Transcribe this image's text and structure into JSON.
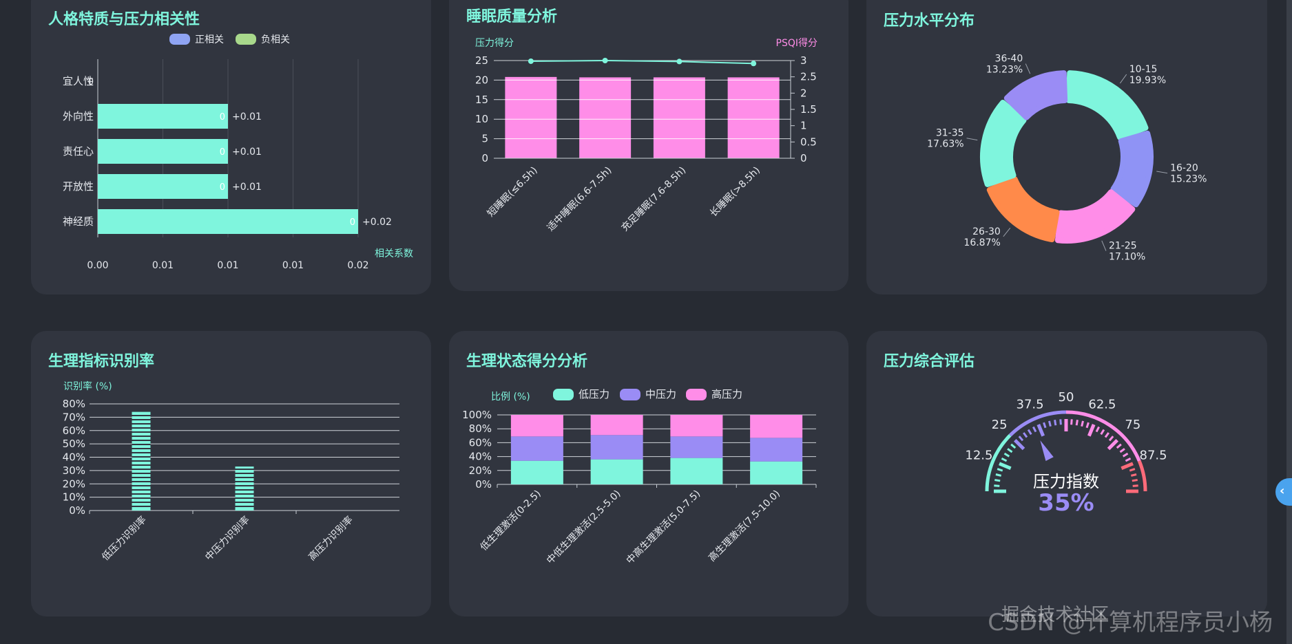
{
  "cards": {
    "personality": {
      "title": "人格特质与压力相关性"
    },
    "sleep": {
      "title": "睡眠质量分析"
    },
    "stress_dist": {
      "title": "压力水平分布"
    },
    "physio_rate": {
      "title": "生理指标识别率"
    },
    "physio_score": {
      "title": "生理状态得分分析"
    },
    "gauge": {
      "title": "压力综合评估"
    }
  },
  "watermark": "CSDN @计算机程序员小杨",
  "watermark_overlay": "掘金技术社区",
  "edge_tab_icon": "‹",
  "chart_data": [
    {
      "id": "personality",
      "type": "bar",
      "orientation": "horizontal",
      "legend": [
        "正相关",
        "负相关"
      ],
      "legend_position": "top",
      "categories": [
        "宜人性",
        "外向性",
        "责任心",
        "开放性",
        "神经质"
      ],
      "values": [
        0,
        0.01,
        0.01,
        0.01,
        0.02
      ],
      "inner_labels": [
        "0",
        "0",
        "0",
        "0",
        "0"
      ],
      "value_labels": [
        "",
        "+0.01",
        "+0.01",
        "+0.01",
        "+0.02"
      ],
      "xlabel": "相关系数",
      "xticks": [
        "0.00",
        "0.01",
        "0.01",
        "0.01",
        "0.02"
      ],
      "xlim": [
        0,
        0.02
      ],
      "grid": true,
      "colors": {
        "positive": "#7ff5dd",
        "negative": "#a8d88b",
        "legend_positive": "#8fa4f3"
      }
    },
    {
      "id": "sleep",
      "type": "bar",
      "categories": [
        "短睡眠(≤6.5h)",
        "适中睡眠(6.6-7.5h)",
        "充足睡眠(7.6-8.5h)",
        "长睡眠(>8.5h)"
      ],
      "series": [
        {
          "type": "bar",
          "axis": "left",
          "values": [
            20.8,
            20.7,
            20.7,
            20.7
          ]
        },
        {
          "type": "line",
          "axis": "right",
          "values": [
            2.98,
            3.0,
            2.97,
            2.91
          ]
        }
      ],
      "ylabel": "压力得分",
      "ylabel_right": "PSQI得分",
      "ylim": [
        0,
        25
      ],
      "ylim_right": [
        0,
        3
      ],
      "yticks": [
        "0",
        "5",
        "10",
        "15",
        "20",
        "25"
      ],
      "yticks_right": [
        "0",
        "0.5",
        "1",
        "1.5",
        "2",
        "2.5",
        "3"
      ],
      "grid": true,
      "colors": {
        "bar": "#ff8de8",
        "line": "#7ff5dd"
      }
    },
    {
      "id": "stress_dist",
      "type": "pie",
      "donut": true,
      "slices": [
        {
          "label": "10-15",
          "value": 19.93,
          "pct": "19.93%",
          "color": "#7ff5dd"
        },
        {
          "label": "16-20",
          "value": 15.23,
          "pct": "15.23%",
          "color": "#8f93f5"
        },
        {
          "label": "21-25",
          "value": 17.1,
          "pct": "17.10%",
          "color": "#ff8de8"
        },
        {
          "label": "26-30",
          "value": 16.87,
          "pct": "16.87%",
          "color": "#ff8a4a"
        },
        {
          "label": "31-35",
          "value": 17.63,
          "pct": "17.63%",
          "color": "#7ff5dd"
        },
        {
          "label": "36-40",
          "value": 13.23,
          "pct": "13.23%",
          "color": "#9a8cf5"
        }
      ]
    },
    {
      "id": "physio_rate",
      "type": "bar",
      "categories": [
        "低压力识别率",
        "中压力识别率",
        "高压力识别率"
      ],
      "values": [
        74,
        33,
        0
      ],
      "ylabel": "识别率 (%)",
      "ylim": [
        0,
        80
      ],
      "yticks": [
        "0%",
        "10%",
        "20%",
        "30%",
        "40%",
        "50%",
        "60%",
        "70%",
        "80%"
      ],
      "grid": true,
      "colors": {
        "bar": "#7ff5dd"
      }
    },
    {
      "id": "physio_score",
      "type": "bar",
      "stacked": true,
      "categories": [
        "低生理激活(0-2.5)",
        "中低生理激活(2.5-5.0)",
        "中高生理激活(5.0-7.5)",
        "高生理激活(7.5-10.0)"
      ],
      "series": [
        {
          "name": "低压力",
          "values": [
            34,
            36,
            38,
            33
          ],
          "color": "#7ff5dd"
        },
        {
          "name": "中压力",
          "values": [
            35,
            35,
            31,
            34
          ],
          "color": "#9a8cf5"
        },
        {
          "name": "高压力",
          "values": [
            31,
            29,
            31,
            33
          ],
          "color": "#ff8de8"
        }
      ],
      "ylabel": "比例 (%)",
      "ylim": [
        0,
        100
      ],
      "yticks": [
        "0%",
        "20%",
        "40%",
        "60%",
        "80%",
        "100%"
      ],
      "legend_position": "top",
      "grid": true
    },
    {
      "id": "gauge",
      "type": "gauge",
      "label": "压力指数",
      "value": 35,
      "value_text": "35%",
      "ticks": [
        "12.5",
        "25",
        "37.5",
        "50",
        "62.5",
        "75",
        "87.5"
      ],
      "range": [
        0,
        100
      ],
      "colors": {
        "low": "#7ff5dd",
        "mid": "#9a8cf5",
        "high": "#ff8de8",
        "max": "#ff6b7a",
        "value": "#9a8cf5"
      }
    }
  ]
}
